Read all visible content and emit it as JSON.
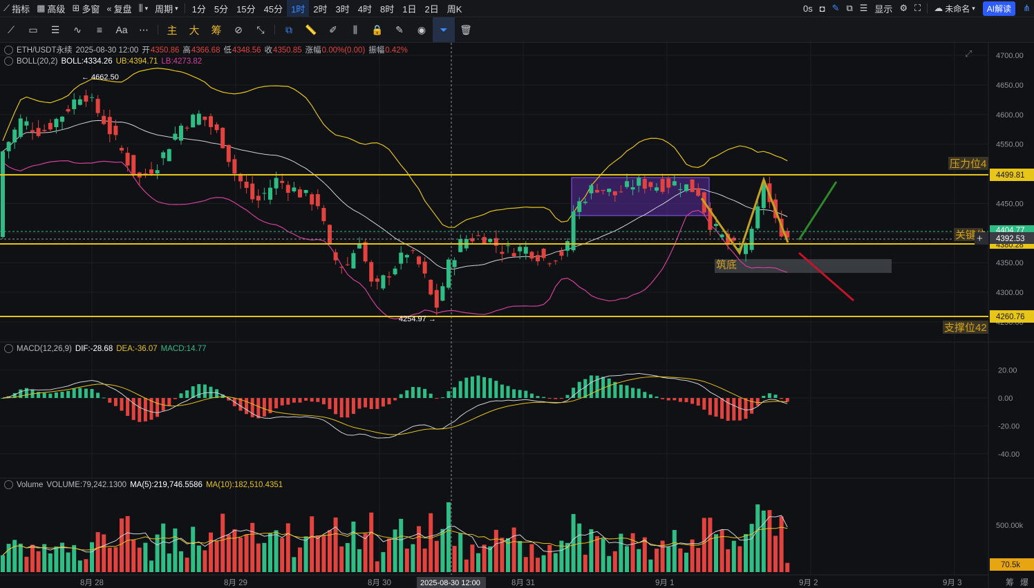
{
  "topbar": {
    "indicators_label": "指标",
    "advanced_label": "高级",
    "multiwin_label": "多窗",
    "replay_label": "复盘",
    "period_label": "周期",
    "timeframes": [
      "1分",
      "5分",
      "15分",
      "45分",
      "1时",
      "2时",
      "3时",
      "4时",
      "8时",
      "1日",
      "2日",
      "周K"
    ],
    "active_timeframe": "1时",
    "countdown": "0s",
    "display_label": "显示",
    "unnamed_label": "未命名",
    "ai_label": "AI解读"
  },
  "drawbar": {
    "main_label": "主",
    "big_label": "大",
    "chip_label": "筹"
  },
  "price_legend": {
    "symbol": "ETH/USDT永续",
    "datetime": "2025-08-30 12:00",
    "open_label": "开",
    "open": "4350.86",
    "high_label": "高",
    "high": "4366.68",
    "low_label": "低",
    "low": "4348.56",
    "close_label": "收",
    "close": "4350.85",
    "change_label": "涨幅",
    "change": "0.00%(0.00)",
    "amp_label": "振幅",
    "amp": "0.42%"
  },
  "boll_legend": {
    "name": "BOLL(20,2)",
    "boll": "BOLL:4334.26",
    "ub": "UB:4394.71",
    "lb": "LB:4273.82"
  },
  "macd_legend": {
    "name": "MACD(12,26,9)",
    "dif": "DIF:-28.68",
    "dea": "DEA:-36.07",
    "macd": "MACD:14.77"
  },
  "volume_legend": {
    "name": "Volume",
    "volume": "VOLUME:79,242.1300",
    "ma5": "MA(5):219,746.5586",
    "ma10": "MA(10):182,510.4351"
  },
  "price_axis": [
    "4700.00",
    "4650.00",
    "4600.00",
    "4550.00",
    "4500.00",
    "4450.00",
    "4400.00",
    "4350.00",
    "4300.00",
    "4250.00"
  ],
  "price_tags": {
    "resistance": "4499.81",
    "upper_hidden": "4404.77",
    "current": "4392.53",
    "lower_hidden": "4380.28",
    "support": "4260.76"
  },
  "macd_axis": [
    "20.00",
    "0.00",
    "-20.00",
    "-40.00"
  ],
  "volume_axis": {
    "top": "500.00k",
    "current": "70.5k"
  },
  "time_axis": [
    "8月 28",
    "8月 29",
    "8月 30",
    "8月 31",
    "9月 1",
    "9月 2",
    "9月 3"
  ],
  "crosshair_time": "2025-08-30 12:00",
  "annotations": {
    "high_marker": "← 4662.50",
    "low_marker": "4254.97 →",
    "resistance_label": "压力位4",
    "key_label": "关键位",
    "support_label": "支撑位42",
    "bottom_label": "筑底"
  },
  "corner_labels": {
    "chip": "筹",
    "burst": "爆"
  },
  "colors": {
    "up": "#2ebd85",
    "down": "#e2433e",
    "boll_mid": "#cfd3da",
    "boll_upper": "#e6c41b",
    "boll_lower": "#d2409c",
    "level_line": "#e8c519",
    "accent_blue": "#3b8cff",
    "annotation_gold": "#d4a21c"
  }
}
